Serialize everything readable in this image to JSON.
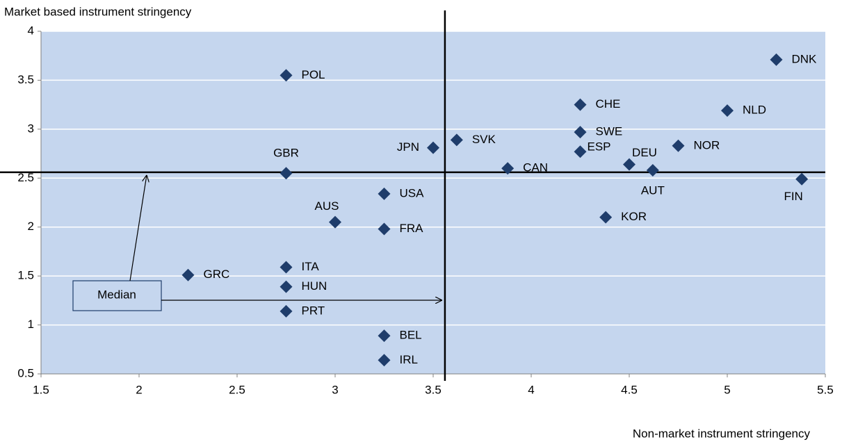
{
  "chart_data": {
    "type": "scatter",
    "y_label": "Market based instrument stringency",
    "x_label": "Non-market instrument stringency",
    "labels": [
      "POL",
      "DNK",
      "CHE",
      "NLD",
      "SWE",
      "SVK",
      "JPN",
      "NOR",
      "ESP",
      "GBR",
      "CAN",
      "DEU",
      "AUT",
      "FIN",
      "USA",
      "AUS",
      "KOR",
      "FRA",
      "GRC",
      "ITA",
      "HUN",
      "PRT",
      "BEL",
      "IRL"
    ],
    "x": [
      2.75,
      5.25,
      4.25,
      5.0,
      4.25,
      3.62,
      3.5,
      4.75,
      4.25,
      2.75,
      3.88,
      4.5,
      4.62,
      5.38,
      3.25,
      3.0,
      4.38,
      3.25,
      2.25,
      2.75,
      2.75,
      2.75,
      3.25,
      3.25
    ],
    "values": [
      3.55,
      3.71,
      3.25,
      3.19,
      2.97,
      2.89,
      2.81,
      2.83,
      2.77,
      2.55,
      2.6,
      2.64,
      2.58,
      2.49,
      2.34,
      2.05,
      2.1,
      1.98,
      1.51,
      1.59,
      1.39,
      1.14,
      0.89,
      0.64
    ],
    "color": "#1f3d6b",
    "median_x": 3.56,
    "median_y": 2.56,
    "median_label": "Median",
    "xlim": [
      1.5,
      5.5
    ],
    "xticks": [
      1.5,
      2,
      2.5,
      3,
      3.5,
      4,
      4.5,
      5,
      5.5
    ],
    "ylim": [
      0.5,
      4
    ],
    "yticks": [
      0.5,
      1,
      1.5,
      2,
      2.5,
      3,
      3.5,
      4
    ],
    "grid": true
  }
}
